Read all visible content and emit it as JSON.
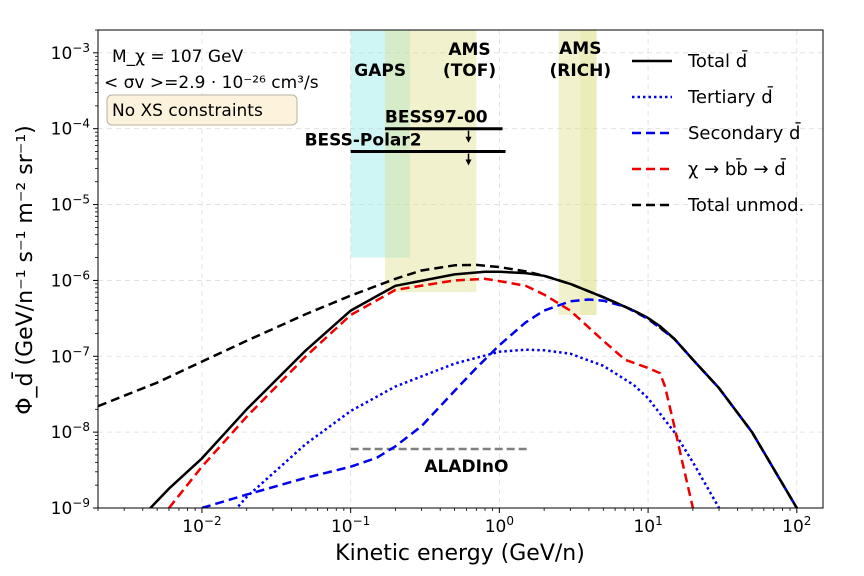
{
  "chart_data": {
    "type": "line",
    "title": "",
    "xlabel": "Kinetic energy (GeV/n)",
    "ylabel": "Φ_d̄ (GeV/n⁻¹ s⁻¹ m⁻² sr⁻¹)",
    "xscale": "log",
    "yscale": "log",
    "xlim": [
      0.002,
      150
    ],
    "ylim": [
      1e-09,
      0.002
    ],
    "grid": true,
    "x_ticks": [
      {
        "value": 0.01,
        "base": "10",
        "exp": "−2"
      },
      {
        "value": 0.1,
        "base": "10",
        "exp": "−1"
      },
      {
        "value": 1,
        "base": "10",
        "exp": "0"
      },
      {
        "value": 10,
        "base": "10",
        "exp": "1"
      },
      {
        "value": 100,
        "base": "10",
        "exp": "2"
      }
    ],
    "y_ticks": [
      {
        "value": 1e-09,
        "base": "10",
        "exp": "−9"
      },
      {
        "value": 1e-08,
        "base": "10",
        "exp": "−8"
      },
      {
        "value": 1e-07,
        "base": "10",
        "exp": "−7"
      },
      {
        "value": 1e-06,
        "base": "10",
        "exp": "−6"
      },
      {
        "value": 1e-05,
        "base": "10",
        "exp": "−5"
      },
      {
        "value": 0.0001,
        "base": "10",
        "exp": "−4"
      },
      {
        "value": 0.001,
        "base": "10",
        "exp": "−3"
      }
    ],
    "annotations": {
      "mass": "M_χ = 107 GeV",
      "cross_section": "< σv >=2.9 · 10⁻²⁶ cm³/s",
      "constraints_box": "No XS constraints"
    },
    "legend_position": "top-right",
    "series": [
      {
        "name": "Total d̄",
        "style": "solid",
        "color": "#000000",
        "x": [
          0.002,
          0.0045,
          0.006,
          0.01,
          0.02,
          0.05,
          0.1,
          0.2,
          0.5,
          0.8,
          1,
          1.5,
          2,
          3,
          5,
          8,
          10,
          12,
          15,
          20,
          30,
          50,
          100
        ],
        "y": [
          2e-10,
          1e-09,
          1.8e-09,
          4.5e-09,
          2e-08,
          1.2e-07,
          4e-07,
          8.5e-07,
          1.2e-06,
          1.3e-06,
          1.3e-06,
          1.25e-06,
          1.15e-06,
          9e-07,
          6e-07,
          4e-07,
          3.2e-07,
          2.5e-07,
          1.7e-07,
          9e-08,
          3.8e-08,
          1e-08,
          1e-09
        ]
      },
      {
        "name": "Tertiary d̄",
        "style": "dotted",
        "color": "#0000ee",
        "x": [
          0.01,
          0.02,
          0.05,
          0.1,
          0.2,
          0.5,
          1,
          1.5,
          2,
          3,
          5,
          8,
          10,
          15,
          20,
          30
        ],
        "y": [
          3e-10,
          1.4e-09,
          7e-09,
          1.9e-08,
          4e-08,
          8e-08,
          1.15e-07,
          1.22e-07,
          1.2e-07,
          1.08e-07,
          7.5e-08,
          4.2e-08,
          2.8e-08,
          1e-08,
          4e-09,
          1e-09
        ]
      },
      {
        "name": "Secondary d̄",
        "style": "dashed",
        "color": "#0000ee",
        "x": [
          0.01,
          0.02,
          0.05,
          0.1,
          0.15,
          0.2,
          0.3,
          0.5,
          0.7,
          1,
          1.5,
          2,
          3,
          4,
          5,
          7,
          10,
          15,
          20,
          30,
          50,
          100
        ],
        "y": [
          1e-09,
          1.5e-09,
          2.5e-09,
          3.5e-09,
          4.6e-09,
          6.5e-09,
          1.2e-08,
          3.5e-08,
          7e-08,
          1.4e-07,
          2.8e-07,
          4e-07,
          5.3e-07,
          5.6e-07,
          5.4e-07,
          4.5e-07,
          3.1e-07,
          1.7e-07,
          9e-08,
          3.8e-08,
          1e-08,
          1e-09
        ]
      },
      {
        "name": "χ → bb̄ → d̄",
        "style": "dashed",
        "color": "#ee0000",
        "x": [
          0.006,
          0.01,
          0.02,
          0.05,
          0.1,
          0.2,
          0.5,
          0.8,
          1,
          1.5,
          2,
          3,
          5,
          7,
          10,
          12,
          13,
          15,
          17,
          20
        ],
        "y": [
          1e-09,
          3.5e-09,
          1.6e-08,
          1e-07,
          3.5e-07,
          7.5e-07,
          1e-06,
          1.05e-06,
          9.8e-07,
          8.5e-07,
          6.5e-07,
          4e-07,
          1.6e-07,
          9e-08,
          7e-08,
          6e-08,
          4e-08,
          1.2e-08,
          4e-09,
          1e-09
        ]
      },
      {
        "name": "Total unmod.",
        "style": "dashed",
        "color": "#000000",
        "x": [
          0.002,
          0.005,
          0.01,
          0.02,
          0.05,
          0.1,
          0.2,
          0.3,
          0.5,
          0.7,
          1,
          1.5,
          2,
          3,
          5,
          8,
          10,
          15,
          20,
          30,
          50,
          100
        ],
        "y": [
          2.2e-08,
          4.5e-08,
          8.5e-08,
          1.6e-07,
          3.6e-07,
          6.3e-07,
          1.05e-06,
          1.35e-06,
          1.58e-06,
          1.6e-06,
          1.5e-06,
          1.32e-06,
          1.15e-06,
          9e-07,
          6e-07,
          4e-07,
          3.2e-07,
          1.7e-07,
          9e-08,
          3.8e-08,
          1e-08,
          1e-09
        ]
      }
    ],
    "sensitivity_regions": [
      {
        "label": "GAPS",
        "x": [
          0.1,
          0.25
        ],
        "y": [
          2e-06,
          0.002
        ],
        "color": "#8ee8e8"
      },
      {
        "label": "AMS (TOF)",
        "x": [
          0.17,
          0.7
        ],
        "y": [
          7e-07,
          0.002
        ],
        "color": "#dede88"
      },
      {
        "label": "AMS (RICH)",
        "x": [
          2.5,
          4.5
        ],
        "y": [
          3.5e-07,
          0.002
        ],
        "color": "#dede88"
      }
    ],
    "limits": [
      {
        "label": "BESS97-00",
        "x": [
          0.17,
          1.05
        ],
        "y": 0.0001,
        "color": "#000000"
      },
      {
        "label": "BESS-Polar2",
        "x": [
          0.1,
          1.1
        ],
        "y": 5e-05,
        "color": "#000000"
      },
      {
        "label": "ALADInO",
        "x": [
          0.1,
          1.6
        ],
        "y": 6e-09,
        "color": "#808080"
      }
    ]
  }
}
